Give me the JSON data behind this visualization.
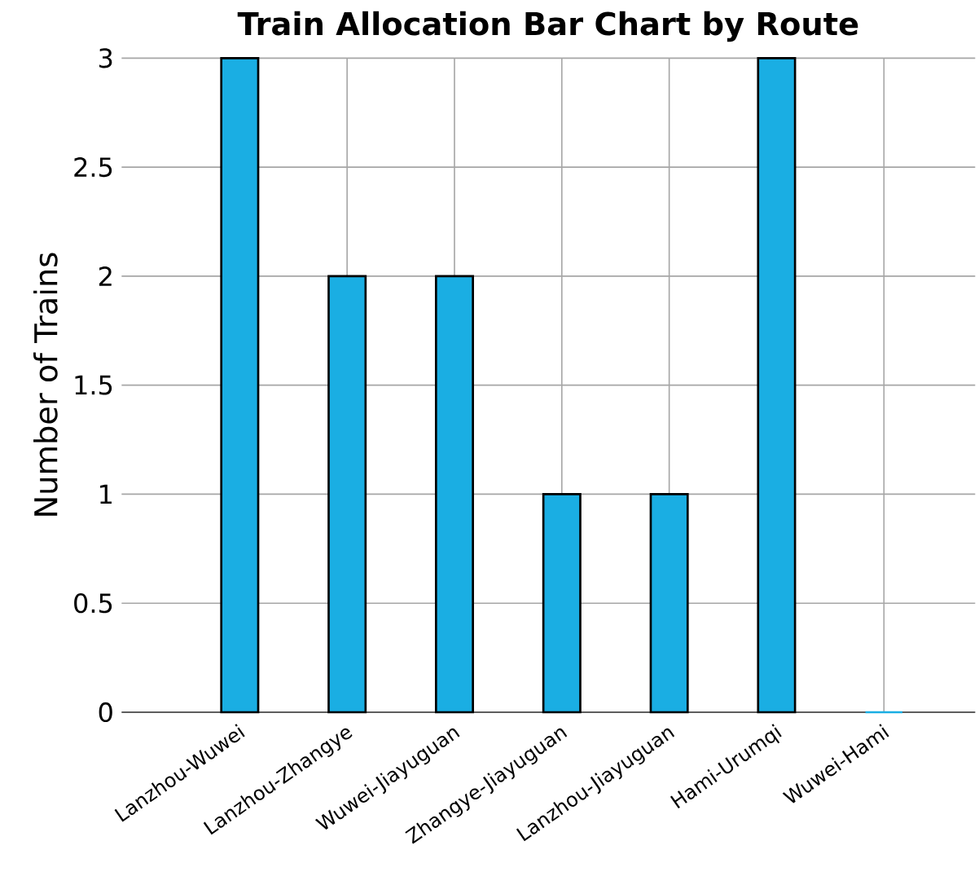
{
  "chart_data": {
    "type": "bar",
    "title": "Train Allocation Bar Chart by Route",
    "ylabel": "Number of Trains",
    "categories": [
      "Lanzhou-Wuwei",
      "Lanzhou-Zhangye",
      "Wuwei-Jiayuguan",
      "Zhangye-Jiayuguan",
      "Lanzhou-Jiayuguan",
      "Hami-Urumqi",
      "Wuwei-Hami"
    ],
    "values": [
      3,
      2,
      2,
      1,
      1,
      3,
      0
    ],
    "color": "#1aaee3",
    "ylim": [
      0,
      3
    ],
    "yticks": [
      0,
      0.5,
      1,
      1.5,
      2,
      2.5,
      3
    ],
    "grid": true
  }
}
